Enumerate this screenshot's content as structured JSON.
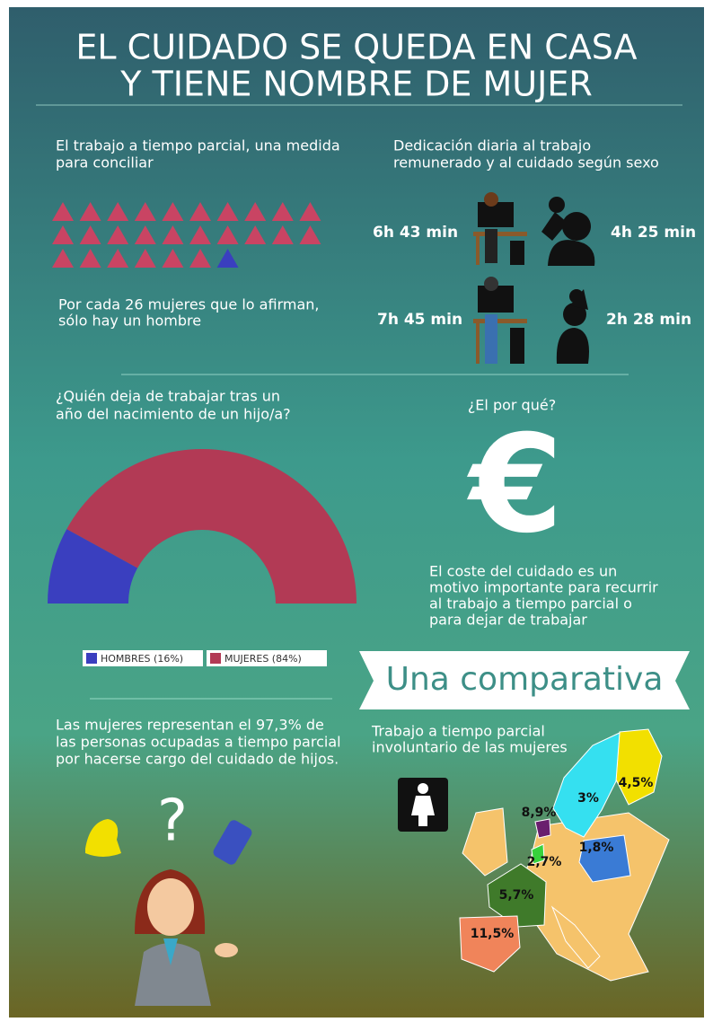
{
  "header": {
    "title": [
      "EL CUIDADO SE QUEDA EN CASA",
      "Y TIENE NOMBRE DE MUJER"
    ]
  },
  "part_time": {
    "heading": [
      "El trabajo a tiempo parcial, una medida",
      "para conciliar"
    ],
    "women_count": 26,
    "men_count": 1,
    "women_color": "#c94463",
    "men_color": "#3a3fbf",
    "caption": [
      "Por cada 26 mujeres que lo afirman,",
      "sólo hay un hombre"
    ]
  },
  "daily": {
    "heading": [
      "Dedicación diaria al trabajo",
      "remunerado y al cuidado según sexo"
    ],
    "rows": [
      {
        "paid": "6h 43 min",
        "care": "4h 25 min"
      },
      {
        "paid": "7h 45 min",
        "care": "2h 28 min"
      }
    ]
  },
  "chart_data": {
    "type": "pie",
    "half": true,
    "title": [
      "¿Quién deja de trabajar tras un",
      "año del nacimiento de un hijo/a?"
    ],
    "categories": [
      "HOMBRES (16%)",
      "MUJERES (84%)"
    ],
    "values": [
      16,
      84
    ],
    "colors": [
      "#3a3fbf",
      "#b23a55"
    ]
  },
  "why": {
    "heading": "¿El por qué?",
    "symbol": "€",
    "text": [
      "El coste del cuidado es un",
      "motivo importante para recurrir",
      "al trabajo a tiempo parcial o",
      "para dejar de trabajar"
    ]
  },
  "banner": "Una comparativa",
  "care": {
    "text": [
      "Las mujeres representan el 97,3% de",
      "las personas ocupadas a tiempo parcial",
      "por hacerse cargo del cuidado de hijos."
    ],
    "symbol": "?"
  },
  "map": {
    "heading": [
      "Trabajo a tiempo parcial",
      "involuntario de las mujeres"
    ],
    "labels": [
      "4,5%",
      "3%",
      "8,9%",
      "1,8%",
      "2,7%",
      "5,7%",
      "11,5%"
    ]
  }
}
